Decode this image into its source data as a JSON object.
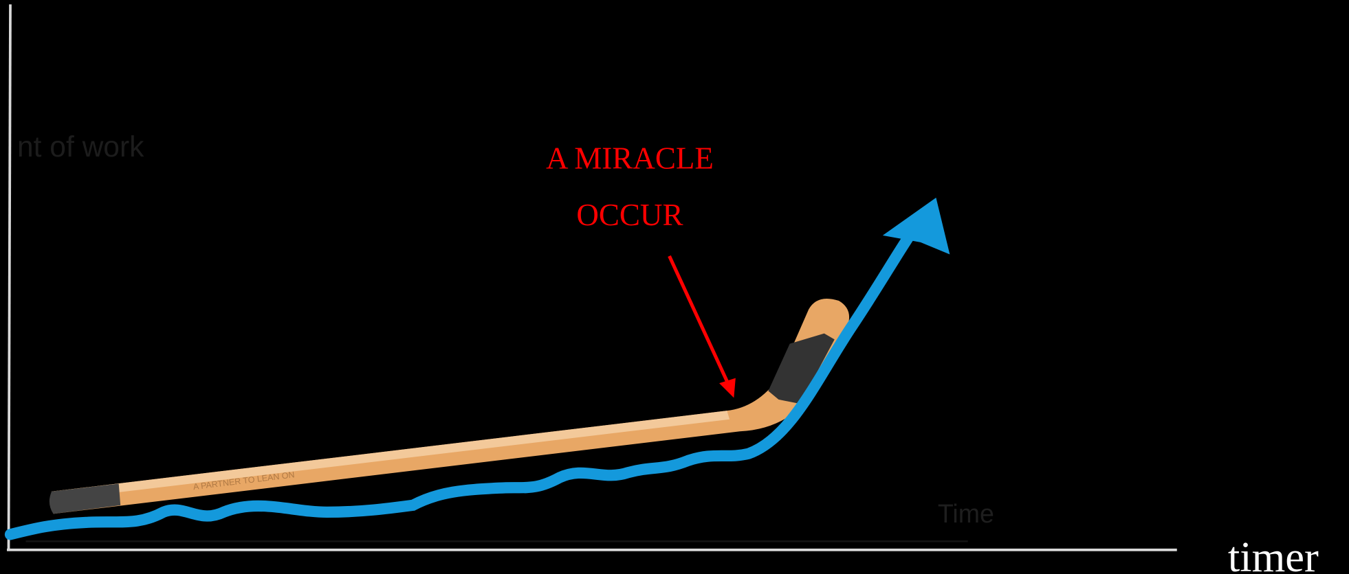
{
  "annotation": {
    "line1": "A MIRACLE",
    "line2": "OCCUR"
  },
  "x_axis_label": "timer",
  "faint_y_label": "nt of work",
  "faint_x_label": "Time",
  "stick_text": "A PARTNER TO LEAN ON"
}
